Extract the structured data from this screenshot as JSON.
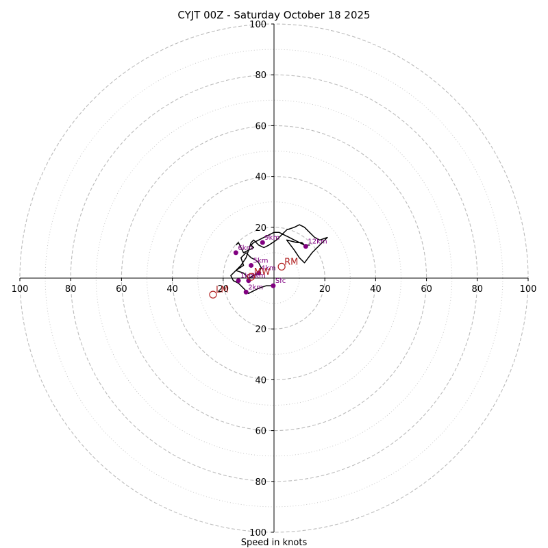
{
  "chart_data": {
    "type": "scatter",
    "subtype": "hodograph",
    "title": "CYJT 00Z - Saturday October 18 2025",
    "xlabel": "Speed in knots",
    "ylabel": "",
    "xlim": [
      -100,
      100
    ],
    "ylim": [
      -100,
      100
    ],
    "grid": true,
    "ring_major": [
      20,
      40,
      60,
      80,
      100
    ],
    "ring_minor": [
      10,
      30,
      50,
      70,
      90
    ],
    "x_ticks": [
      {
        "value": -100,
        "label": "100"
      },
      {
        "value": -80,
        "label": "80"
      },
      {
        "value": -60,
        "label": "60"
      },
      {
        "value": -40,
        "label": "40"
      },
      {
        "value": -20,
        "label": "20"
      },
      {
        "value": 20,
        "label": "20"
      },
      {
        "value": 40,
        "label": "40"
      },
      {
        "value": 60,
        "label": "60"
      },
      {
        "value": 80,
        "label": "80"
      },
      {
        "value": 100,
        "label": "100"
      }
    ],
    "y_ticks": [
      {
        "value": 100,
        "label": "100"
      },
      {
        "value": 80,
        "label": "80"
      },
      {
        "value": 60,
        "label": "60"
      },
      {
        "value": 40,
        "label": "40"
      },
      {
        "value": 20,
        "label": "20"
      },
      {
        "value": -20,
        "label": "20"
      },
      {
        "value": -40,
        "label": "40"
      },
      {
        "value": -60,
        "label": "60"
      },
      {
        "value": -80,
        "label": "80"
      },
      {
        "value": -100,
        "label": "100"
      }
    ],
    "series": [
      {
        "name": "hodograph trace",
        "color": "#000000",
        "u": [
          -0.5,
          -3,
          -6,
          -8,
          -10,
          -11,
          -12,
          -14,
          -16,
          -17,
          -15,
          -12,
          -13,
          -11,
          -10,
          -9,
          -7,
          -6,
          -5,
          -6,
          -10,
          -12,
          -15,
          -13,
          -11,
          -10,
          -9,
          -8,
          -7,
          -6,
          -4,
          -2,
          1,
          3,
          5,
          8,
          10,
          12,
          14,
          16,
          18,
          21,
          15,
          12,
          10,
          8,
          5,
          9,
          11,
          12,
          14,
          12,
          10,
          8,
          6,
          4,
          2,
          0,
          -2,
          -4,
          -6,
          -8,
          -9,
          -8,
          -10,
          -12,
          -13,
          -14,
          -15
        ],
        "v": [
          -3,
          -3,
          -4,
          -5,
          -6,
          -5,
          -4,
          -2,
          -1,
          1,
          3,
          5,
          8,
          10,
          9,
          8,
          7,
          6,
          4,
          2,
          0,
          2,
          3,
          5,
          8,
          11,
          14,
          15,
          14,
          13,
          12,
          13,
          15,
          17,
          19,
          20,
          21,
          20,
          18,
          16,
          15,
          16,
          10,
          6,
          8,
          11,
          15,
          14,
          14,
          13,
          13,
          13,
          14,
          15,
          16,
          17,
          18,
          18,
          17,
          16,
          15,
          14,
          13,
          12,
          11,
          10,
          12,
          14,
          13
        ]
      }
    ],
    "height_markers": [
      {
        "label": "Sfc",
        "u": -0.3,
        "v": -3
      },
      {
        "label": "1km",
        "u": -14,
        "v": -1
      },
      {
        "label": "2km",
        "u": -11,
        "v": -5.5
      },
      {
        "label": "3km",
        "u": -10,
        "v": -1
      },
      {
        "label": "4km",
        "u": -6,
        "v": 2
      },
      {
        "label": "5km",
        "u": -9,
        "v": 5
      },
      {
        "label": "6km",
        "u": -15,
        "v": 10
      },
      {
        "label": "9km",
        "u": -4.5,
        "v": 14
      },
      {
        "label": "12km",
        "u": 12.5,
        "v": 12.5
      }
    ],
    "marker_color": "#800080",
    "storm_motions": [
      {
        "label": "RM",
        "u": 3,
        "v": 4.5
      },
      {
        "label": "LM",
        "u": -24,
        "v": -6.5
      },
      {
        "label": "MW",
        "u": -9,
        "v": 0.5
      }
    ],
    "storm_color": "#b22222"
  }
}
